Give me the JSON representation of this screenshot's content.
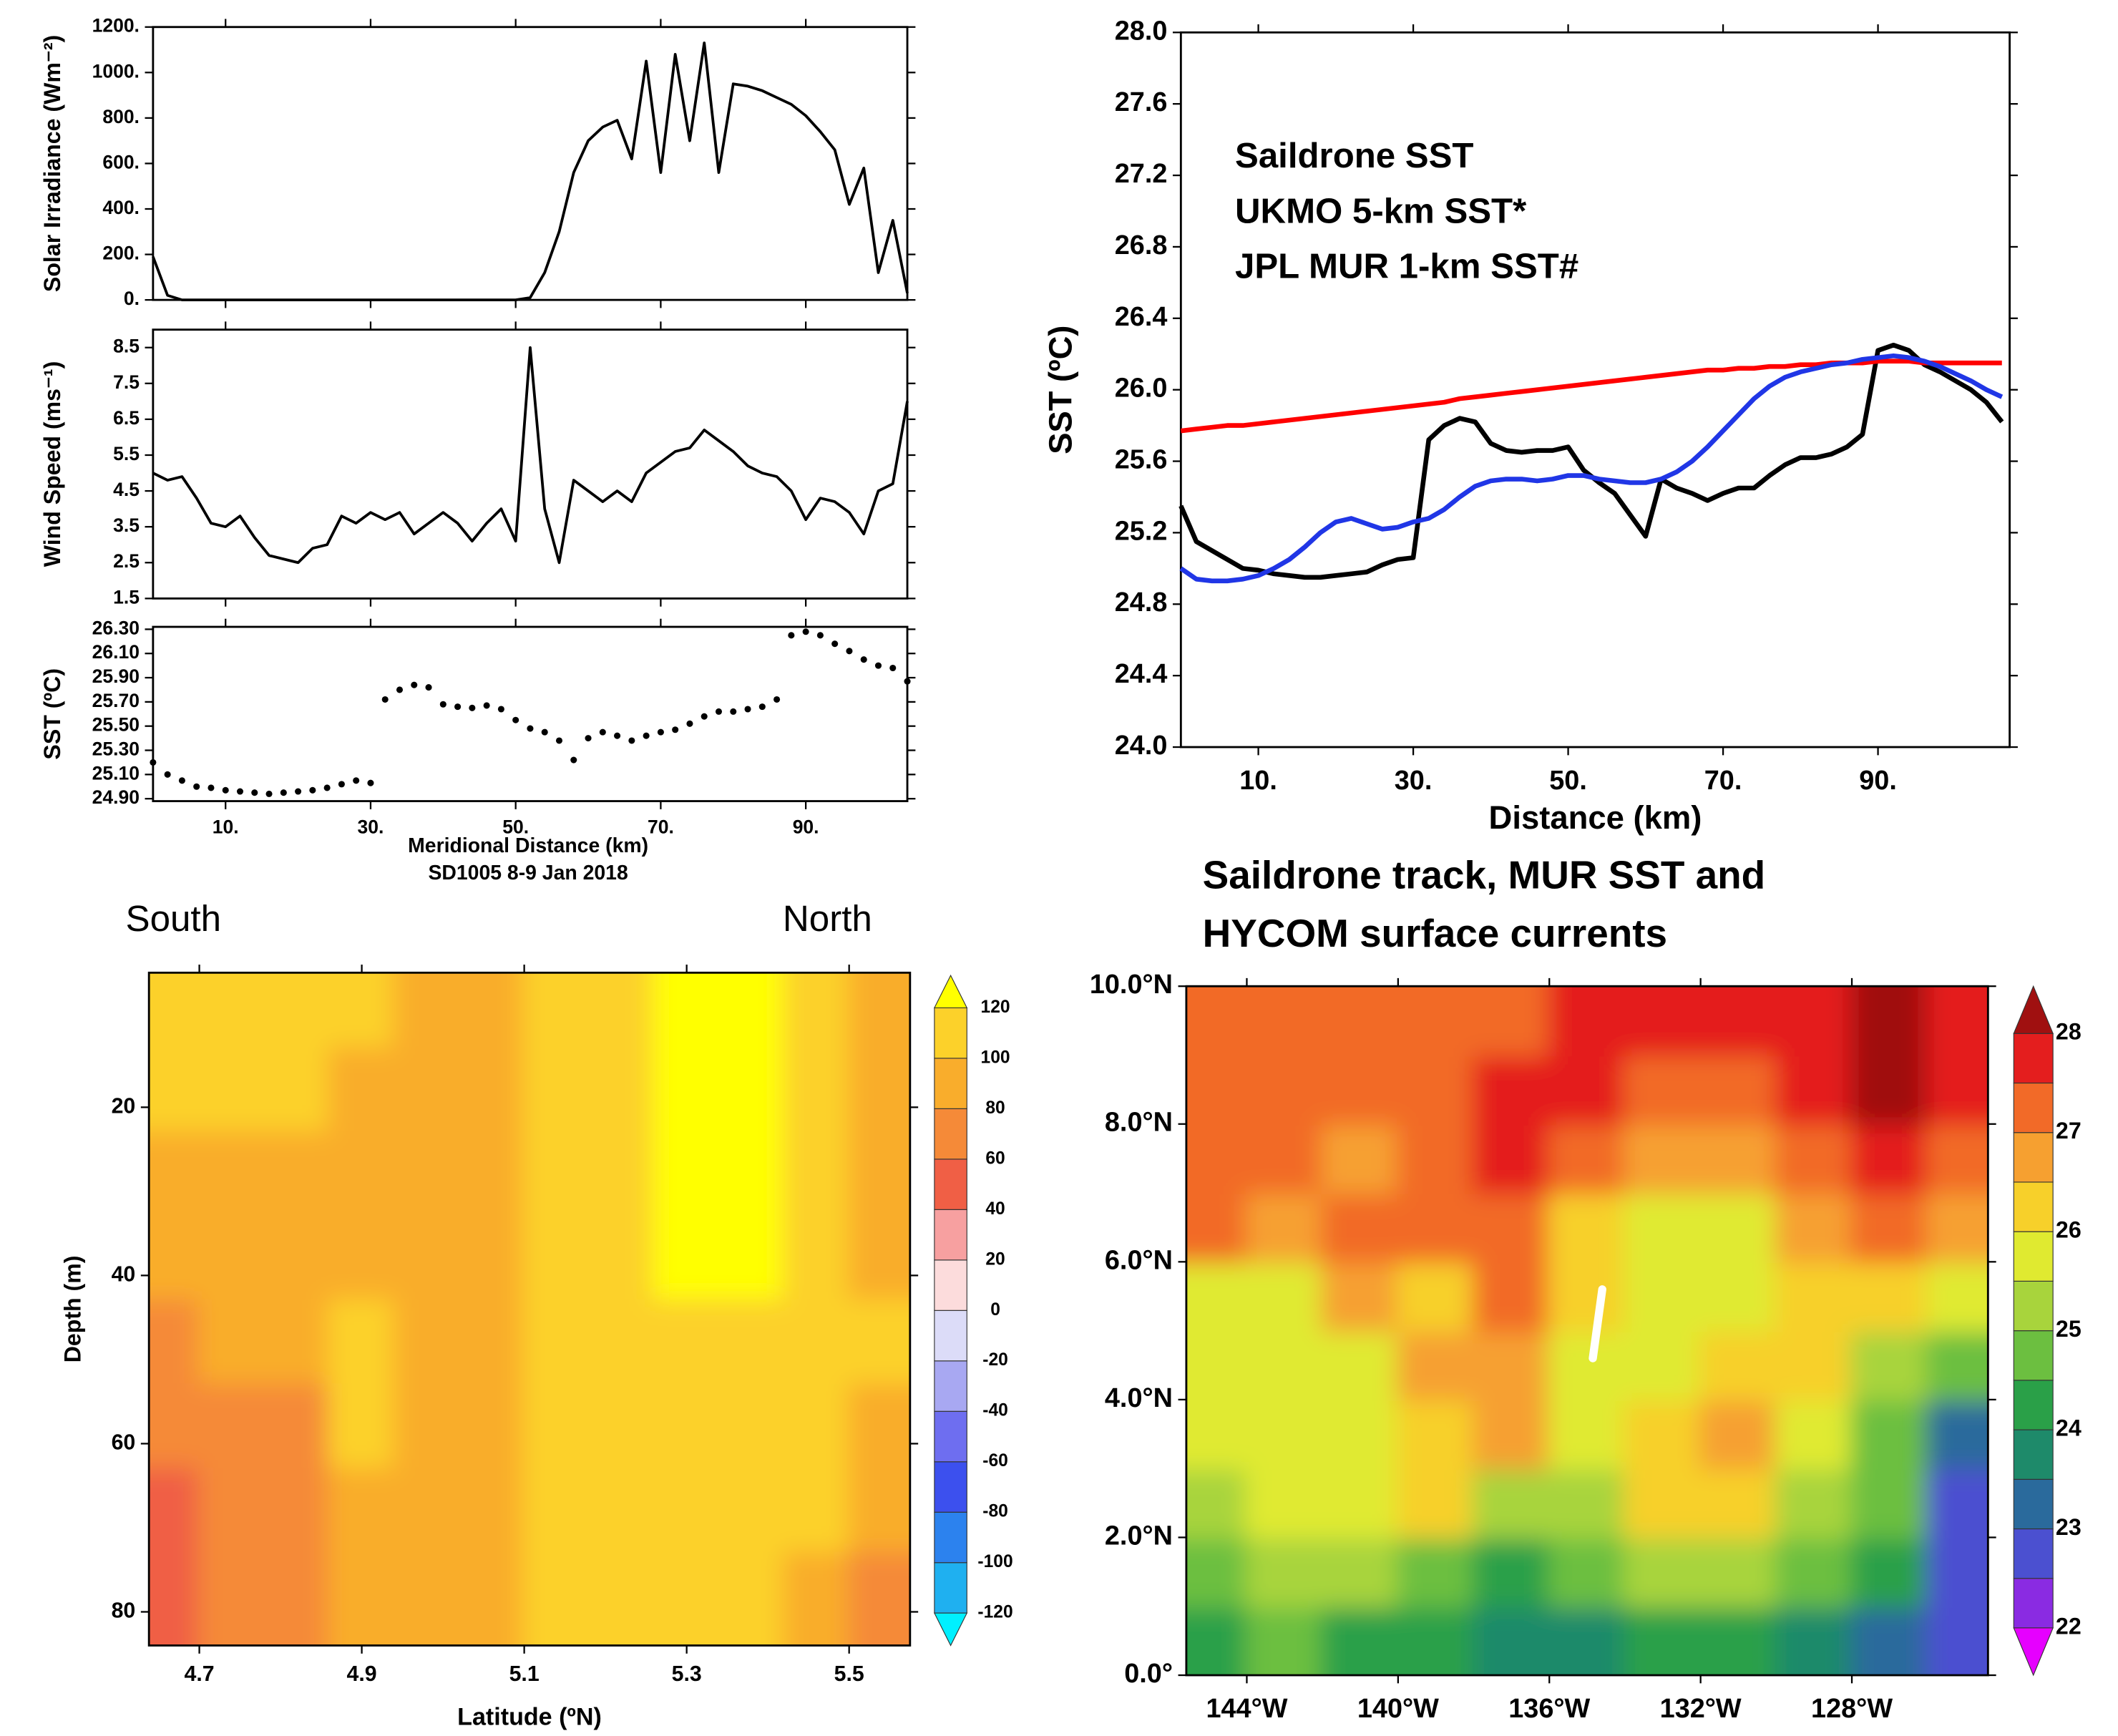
{
  "chart_data": [
    {
      "type": "line",
      "ylabel": "Solar Irradiance (Wm⁻²)",
      "color": "#000000",
      "x": [
        0,
        2,
        4,
        6,
        8,
        10,
        12,
        14,
        16,
        18,
        20,
        22,
        24,
        26,
        28,
        30,
        32,
        34,
        36,
        38,
        40,
        42,
        44,
        46,
        48,
        50,
        52,
        54,
        56,
        58,
        60,
        62,
        64,
        66,
        68,
        70,
        72,
        74,
        76,
        78,
        80,
        82,
        84,
        86,
        88,
        90,
        92,
        94,
        96,
        98,
        100,
        102,
        104
      ],
      "values": [
        190,
        20,
        0,
        0,
        0,
        0,
        0,
        0,
        0,
        0,
        0,
        0,
        0,
        0,
        0,
        0,
        0,
        0,
        0,
        0,
        0,
        0,
        0,
        0,
        0,
        0,
        10,
        120,
        300,
        560,
        700,
        760,
        790,
        620,
        1050,
        560,
        1080,
        700,
        1130,
        560,
        950,
        940,
        920,
        890,
        860,
        810,
        740,
        660,
        420,
        580,
        120,
        350,
        30
      ],
      "xlim": [
        0,
        104
      ],
      "ylim": [
        0,
        1200
      ],
      "yticks": [
        {
          "value": 0,
          "label": "0."
        },
        {
          "value": 200,
          "label": "200."
        },
        {
          "value": 400,
          "label": "400."
        },
        {
          "value": 600,
          "label": "600."
        },
        {
          "value": 800,
          "label": "800."
        },
        {
          "value": 1000,
          "label": "1000."
        },
        {
          "value": 1200,
          "label": "1200."
        }
      ]
    },
    {
      "type": "line",
      "ylabel": "Wind Speed (ms⁻¹)",
      "color": "#000000",
      "x": [
        0,
        2,
        4,
        6,
        8,
        10,
        12,
        14,
        16,
        18,
        20,
        22,
        24,
        26,
        28,
        30,
        32,
        34,
        36,
        38,
        40,
        42,
        44,
        46,
        48,
        50,
        52,
        54,
        56,
        58,
        60,
        62,
        64,
        66,
        68,
        70,
        72,
        74,
        76,
        78,
        80,
        82,
        84,
        86,
        88,
        90,
        92,
        94,
        96,
        98,
        100,
        102,
        104
      ],
      "values": [
        5.0,
        4.8,
        4.9,
        4.3,
        3.6,
        3.5,
        3.8,
        3.2,
        2.7,
        2.6,
        2.5,
        2.9,
        3.0,
        3.8,
        3.6,
        3.9,
        3.7,
        3.9,
        3.3,
        3.6,
        3.9,
        3.6,
        3.1,
        3.6,
        4.0,
        3.1,
        8.5,
        4.0,
        2.5,
        4.8,
        4.5,
        4.2,
        4.5,
        4.2,
        5.0,
        5.3,
        5.6,
        5.7,
        6.2,
        5.9,
        5.6,
        5.2,
        5.0,
        4.9,
        4.5,
        3.7,
        4.3,
        4.2,
        3.9,
        3.3,
        4.5,
        4.7,
        7.0
      ],
      "xlim": [
        0,
        104
      ],
      "ylim": [
        1.5,
        9
      ],
      "yticks": [
        1.5,
        2.5,
        3.5,
        4.5,
        5.5,
        6.5,
        7.5,
        8.5
      ]
    },
    {
      "type": "scatter",
      "ylabel": "SST (ºC)",
      "xlabel": "Meridional Distance (km)",
      "subtitle": "SD1005 8-9 Jan 2018",
      "color": "#000000",
      "x": [
        0,
        2,
        4,
        6,
        8,
        10,
        12,
        14,
        16,
        18,
        20,
        22,
        24,
        26,
        28,
        30,
        32,
        34,
        36,
        38,
        40,
        42,
        44,
        46,
        48,
        50,
        52,
        54,
        56,
        58,
        60,
        62,
        64,
        66,
        68,
        70,
        72,
        74,
        76,
        78,
        80,
        82,
        84,
        86,
        88,
        90,
        92,
        94,
        96,
        98,
        100,
        102,
        104
      ],
      "values": [
        25.2,
        25.1,
        25.05,
        25.0,
        24.99,
        24.97,
        24.96,
        24.95,
        24.94,
        24.95,
        24.96,
        24.97,
        24.99,
        25.02,
        25.05,
        25.03,
        25.72,
        25.8,
        25.84,
        25.82,
        25.68,
        25.66,
        25.65,
        25.67,
        25.64,
        25.55,
        25.48,
        25.45,
        25.38,
        25.22,
        25.4,
        25.45,
        25.42,
        25.38,
        25.42,
        25.45,
        25.47,
        25.52,
        25.58,
        25.62,
        25.62,
        25.64,
        25.66,
        25.72,
        26.25,
        26.28,
        26.25,
        26.18,
        26.12,
        26.05,
        26.0,
        25.98,
        25.87
      ],
      "xlim": [
        0,
        104
      ],
      "ylim": [
        24.88,
        26.32
      ],
      "xticks": [
        {
          "value": 10,
          "label": "10."
        },
        {
          "value": 30,
          "label": "30."
        },
        {
          "value": 50,
          "label": "50."
        },
        {
          "value": 70,
          "label": "70."
        },
        {
          "value": 90,
          "label": "90."
        }
      ],
      "yticks": [
        {
          "value": 24.9,
          "label": "24.90"
        },
        {
          "value": 25.1,
          "label": "25.10"
        },
        {
          "value": 25.3,
          "label": "25.30"
        },
        {
          "value": 25.5,
          "label": "25.50"
        },
        {
          "value": 25.7,
          "label": "25.70"
        },
        {
          "value": 25.9,
          "label": "25.90"
        },
        {
          "value": 26.1,
          "label": "26.10"
        },
        {
          "value": 26.3,
          "label": "26.30"
        }
      ]
    },
    {
      "type": "line",
      "xlabel": "Distance (km)",
      "ylabel": "SST (ºC)",
      "x": [
        0,
        2,
        4,
        6,
        8,
        10,
        12,
        14,
        16,
        18,
        20,
        22,
        24,
        26,
        28,
        30,
        32,
        34,
        36,
        38,
        40,
        42,
        44,
        46,
        48,
        50,
        52,
        54,
        56,
        58,
        60,
        62,
        64,
        66,
        68,
        70,
        72,
        74,
        76,
        78,
        80,
        82,
        84,
        86,
        88,
        90,
        92,
        94,
        96,
        98,
        100,
        102,
        104,
        106
      ],
      "series": [
        {
          "name": "Saildrone SST",
          "color": "#000000",
          "values": [
            25.35,
            25.15,
            25.1,
            25.05,
            25.0,
            24.99,
            24.97,
            24.96,
            24.95,
            24.95,
            24.96,
            24.97,
            24.98,
            25.02,
            25.05,
            25.06,
            25.72,
            25.8,
            25.84,
            25.82,
            25.7,
            25.66,
            25.65,
            25.66,
            25.66,
            25.68,
            25.55,
            25.48,
            25.42,
            25.3,
            25.18,
            25.5,
            25.45,
            25.42,
            25.38,
            25.42,
            25.45,
            25.45,
            25.52,
            25.58,
            25.62,
            25.62,
            25.64,
            25.68,
            25.75,
            26.22,
            26.25,
            26.22,
            26.14,
            26.1,
            26.05,
            26.0,
            25.93,
            25.82
          ]
        },
        {
          "name": "UKMO 5-km SST*",
          "color": "#ff0000",
          "values": [
            25.77,
            25.78,
            25.79,
            25.8,
            25.8,
            25.81,
            25.82,
            25.83,
            25.84,
            25.85,
            25.86,
            25.87,
            25.88,
            25.89,
            25.9,
            25.91,
            25.92,
            25.93,
            25.95,
            25.96,
            25.97,
            25.98,
            25.99,
            26.0,
            26.01,
            26.02,
            26.03,
            26.04,
            26.05,
            26.06,
            26.07,
            26.08,
            26.09,
            26.1,
            26.11,
            26.11,
            26.12,
            26.12,
            26.13,
            26.13,
            26.14,
            26.14,
            26.15,
            26.15,
            26.15,
            26.16,
            26.16,
            26.16,
            26.15,
            26.15,
            26.15,
            26.15,
            26.15,
            26.15
          ]
        },
        {
          "name": "JPL MUR 1-km SST#",
          "color": "#2036e6",
          "values": [
            25.0,
            24.94,
            24.93,
            24.93,
            24.94,
            24.96,
            25.0,
            25.05,
            25.12,
            25.2,
            25.26,
            25.28,
            25.25,
            25.22,
            25.23,
            25.26,
            25.28,
            25.33,
            25.4,
            25.46,
            25.49,
            25.5,
            25.5,
            25.49,
            25.5,
            25.52,
            25.52,
            25.5,
            25.49,
            25.48,
            25.48,
            25.5,
            25.54,
            25.6,
            25.68,
            25.77,
            25.86,
            25.95,
            26.02,
            26.07,
            26.1,
            26.12,
            26.14,
            26.15,
            26.17,
            26.18,
            26.19,
            26.18,
            26.16,
            26.13,
            26.09,
            26.05,
            26.0,
            25.96
          ]
        }
      ],
      "xlim": [
        0,
        107
      ],
      "ylim": [
        24,
        28
      ],
      "xticks": [
        {
          "value": 10,
          "label": "10."
        },
        {
          "value": 30,
          "label": "30."
        },
        {
          "value": 50,
          "label": "50."
        },
        {
          "value": 70,
          "label": "70."
        },
        {
          "value": 90,
          "label": "90."
        }
      ],
      "yticks": [
        {
          "value": 24,
          "label": "24.0"
        },
        {
          "value": 24.4,
          "label": "24.4"
        },
        {
          "value": 24.8,
          "label": "24.8"
        },
        {
          "value": 25.2,
          "label": "25.2"
        },
        {
          "value": 25.6,
          "label": "25.6"
        },
        {
          "value": 26,
          "label": "26.0"
        },
        {
          "value": 26.4,
          "label": "26.4"
        },
        {
          "value": 26.8,
          "label": "26.8"
        },
        {
          "value": 27.2,
          "label": "27.2"
        },
        {
          "value": 27.6,
          "label": "27.6"
        },
        {
          "value": 28,
          "label": "28.0"
        }
      ]
    },
    {
      "type": "contour",
      "left_label": "South",
      "right_label": "North",
      "xlabel": "Latitude (ºN)",
      "ylabel": "Depth (m)",
      "x": [
        4.66,
        4.74,
        4.82,
        4.9,
        4.98,
        5.06,
        5.14,
        5.22,
        5.3,
        5.38,
        5.46,
        5.54
      ],
      "y": [
        8,
        18,
        28,
        38,
        48,
        58,
        68,
        78
      ],
      "z": [
        [
          110,
          110,
          105,
          100,
          95,
          80,
          100,
          110,
          125,
          125,
          110,
          95
        ],
        [
          105,
          100,
          100,
          95,
          90,
          80,
          100,
          110,
          125,
          125,
          105,
          90
        ],
        [
          95,
          95,
          90,
          95,
          85,
          85,
          100,
          110,
          125,
          125,
          100,
          90
        ],
        [
          85,
          90,
          85,
          95,
          90,
          90,
          100,
          110,
          125,
          125,
          100,
          95
        ],
        [
          75,
          85,
          80,
          100,
          95,
          90,
          100,
          110,
          115,
          115,
          105,
          100
        ],
        [
          65,
          75,
          75,
          105,
          95,
          90,
          100,
          110,
          110,
          110,
          100,
          95
        ],
        [
          55,
          65,
          70,
          95,
          90,
          80,
          100,
          110,
          105,
          105,
          100,
          85
        ],
        [
          50,
          60,
          70,
          85,
          85,
          80,
          100,
          110,
          100,
          100,
          95,
          75
        ]
      ],
      "xlim": [
        4.638,
        5.575
      ],
      "ylim": [
        4,
        84
      ],
      "y_inverted": true,
      "xticks": [
        4.7,
        4.9,
        5.1,
        5.3,
        5.5
      ],
      "yticks": [
        20,
        40,
        60,
        80
      ],
      "levels": [
        -120,
        -100,
        -80,
        -60,
        -40,
        -20,
        0,
        20,
        40,
        60,
        80,
        100,
        120
      ],
      "colors": [
        "#00f0ff",
        "#1fb0f0",
        "#2c82ee",
        "#3c50ee",
        "#6e6ef0",
        "#a8a8f2",
        "#dcdcf8",
        "#fcdcdc",
        "#f7a0a0",
        "#f05f45",
        "#f58a38",
        "#f9ad2c",
        "#fcd12a",
        "#ffff00"
      ],
      "colorbar_ticks": [
        -120,
        -100,
        -80,
        -60,
        -40,
        -20,
        0,
        20,
        40,
        60,
        80,
        100,
        120
      ]
    },
    {
      "type": "map",
      "title": [
        "Saildrone track, MUR SST and",
        "HYCOM surface currents"
      ],
      "x": [
        -145,
        -143,
        -141,
        -139,
        -137,
        -135,
        -133,
        -131,
        -129,
        -127,
        -125
      ],
      "y": [
        0.5,
        1.5,
        2.5,
        3.5,
        4.5,
        5.5,
        6.5,
        7.5,
        8.5,
        9.5
      ],
      "z": [
        [
          24.4,
          24.5,
          24.3,
          24.1,
          23.8,
          23.9,
          24.2,
          24.4,
          23.9,
          23.4,
          22.6
        ],
        [
          24.8,
          25.0,
          25.1,
          24.6,
          24.0,
          24.5,
          25.0,
          25.4,
          24.8,
          24.2,
          22.7
        ],
        [
          25.3,
          25.5,
          25.8,
          26.2,
          25.4,
          25.0,
          26.0,
          26.2,
          25.3,
          24.7,
          22.9
        ],
        [
          25.5,
          25.6,
          25.8,
          26.3,
          26.7,
          25.6,
          26.4,
          26.6,
          25.8,
          24.9,
          23.4
        ],
        [
          25.5,
          25.6,
          25.9,
          26.9,
          26.8,
          25.9,
          25.8,
          26.4,
          26.3,
          25.1,
          24.6
        ],
        [
          25.6,
          25.8,
          26.8,
          26.4,
          27.0,
          26.0,
          25.6,
          25.8,
          26.4,
          26.2,
          25.6
        ],
        [
          27.0,
          26.7,
          27.2,
          27.0,
          27.1,
          26.4,
          25.7,
          25.9,
          26.6,
          27.0,
          26.8
        ],
        [
          27.2,
          27.0,
          26.8,
          27.2,
          27.6,
          27.3,
          26.5,
          26.8,
          27.2,
          27.5,
          27.3
        ],
        [
          27.4,
          27.3,
          27.1,
          27.3,
          27.8,
          27.5,
          27.4,
          27.3,
          27.6,
          28.1,
          27.9
        ],
        [
          27.3,
          27.2,
          27.0,
          27.1,
          27.4,
          27.5,
          27.6,
          27.5,
          27.8,
          28.2,
          27.8
        ]
      ],
      "track": {
        "lon": [
          -134.85,
          -134.6
        ],
        "lat": [
          4.6,
          5.6
        ]
      },
      "xlim": [
        -145.6,
        -124.4
      ],
      "ylim": [
        0,
        10
      ],
      "xticks": [
        {
          "value": -144,
          "label": "144°W"
        },
        {
          "value": -140,
          "label": "140°W"
        },
        {
          "value": -136,
          "label": "136°W"
        },
        {
          "value": -132,
          "label": "132°W"
        },
        {
          "value": -128,
          "label": "128°W"
        }
      ],
      "yticks": [
        {
          "value": 0,
          "label": "0.0°"
        },
        {
          "value": 2,
          "label": "2.0°N"
        },
        {
          "value": 4,
          "label": "4.0°N"
        },
        {
          "value": 6,
          "label": "6.0°N"
        },
        {
          "value": 8,
          "label": "8.0°N"
        },
        {
          "value": 10,
          "label": "10.0°N"
        }
      ],
      "levels": [
        22,
        22.5,
        23,
        23.5,
        24,
        24.5,
        25,
        25.5,
        26,
        26.5,
        27,
        27.5,
        28
      ],
      "colors": [
        "#e600ff",
        "#8a2be2",
        "#4b50d0",
        "#2a6a9c",
        "#1e8a6a",
        "#2aa048",
        "#6cbf40",
        "#a8d43c",
        "#e0ea30",
        "#f7d02a",
        "#f6a030",
        "#f26a28",
        "#e41e1e",
        "#a01010"
      ],
      "colorbar_ticks": [
        22,
        23,
        24,
        25,
        26,
        27,
        28
      ]
    }
  ]
}
